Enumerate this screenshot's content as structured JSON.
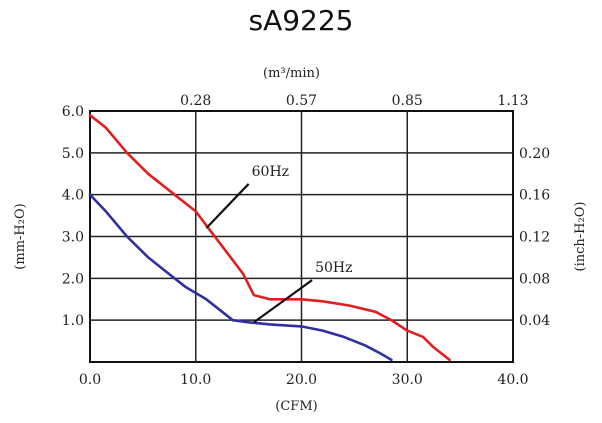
{
  "chart_data": {
    "type": "line",
    "title": "sA9225",
    "xlabel": "(CFM)",
    "x2label": "(m³/min)",
    "ylabel": "(mm-H₂O)",
    "y2label": "(inch-H₂O)",
    "xlim": [
      0,
      40
    ],
    "ylim": [
      0,
      6
    ],
    "x_ticks": [
      "0.0",
      "10.0",
      "20.0",
      "30.0",
      "40.0"
    ],
    "x_tick_values": [
      0,
      10,
      20,
      30,
      40
    ],
    "y_ticks": [
      "6.0",
      "5.0",
      "4.0",
      "3.0",
      "2.0",
      "1.0"
    ],
    "y_tick_values": [
      6,
      5,
      4,
      3,
      2,
      1
    ],
    "x2_ticks": [
      "0.28",
      "0.57",
      "0.85",
      "1.13"
    ],
    "x2_tick_values_cfm": [
      10,
      20,
      30,
      40
    ],
    "y2_ticks": [
      "0.20",
      "0.16",
      "0.12",
      "0.08",
      "0.04"
    ],
    "y2_tick_values_mm": [
      5,
      4,
      3,
      2,
      1
    ],
    "grid": true,
    "series": [
      {
        "name": "60Hz",
        "color": "#e02020",
        "x": [
          0,
          1.5,
          3.5,
          5.5,
          8,
          10,
          11.5,
          13,
          14.5,
          15.5,
          17,
          20,
          22,
          24.5,
          27,
          28.5,
          30,
          31.5,
          32.5,
          34
        ],
        "y": [
          5.9,
          5.6,
          5.0,
          4.5,
          4.0,
          3.6,
          3.1,
          2.6,
          2.1,
          1.6,
          1.5,
          1.5,
          1.45,
          1.35,
          1.2,
          1.0,
          0.75,
          0.6,
          0.35,
          0.05
        ]
      },
      {
        "name": "50Hz",
        "color": "#3030a0",
        "x": [
          0,
          1.5,
          3.5,
          5.5,
          7,
          9,
          11,
          12.5,
          13.5,
          15,
          17,
          20,
          22,
          24,
          26,
          27.5,
          28.5
        ],
        "y": [
          4.0,
          3.6,
          3.0,
          2.5,
          2.2,
          1.8,
          1.5,
          1.2,
          1.0,
          0.95,
          0.9,
          0.85,
          0.75,
          0.6,
          0.4,
          0.2,
          0.05
        ]
      }
    ],
    "annotations": [
      {
        "text": "60Hz",
        "x": 15,
        "y": 4.4,
        "points_to": [
          11,
          3.2
        ]
      },
      {
        "text": "50Hz",
        "x": 21,
        "y": 2.1,
        "points_to": [
          15.5,
          0.95
        ]
      }
    ]
  }
}
